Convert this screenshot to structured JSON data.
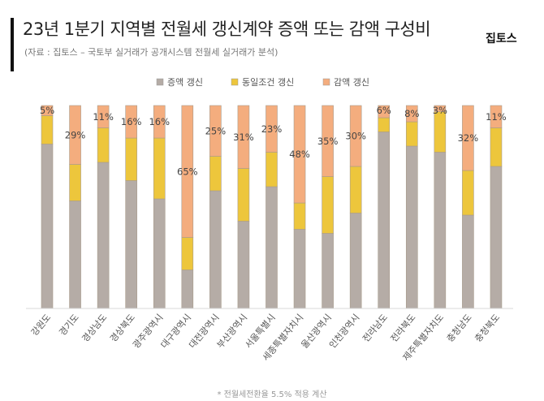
{
  "header": {
    "title": "23년 1분기 지역별 전월세 갱신계약 증액 또는 감액 구성비",
    "subtitle": "(자료 : 집토스 – 국토부 실거래가 공개시스템 전월세 실거래가 분석)",
    "brand": "집토스"
  },
  "footnote": "* 전월세전환율 5.5% 적용 계산",
  "chart_data": {
    "type": "bar",
    "stacked": true,
    "percent_stacked": true,
    "ylim": [
      0,
      100
    ],
    "grid": false,
    "legend_position": "top",
    "categories": [
      "강원도",
      "경기도",
      "경상남도",
      "경상북도",
      "광주광역시",
      "대구광역시",
      "대전광역시",
      "부산광역시",
      "서울특별시",
      "세종특별자치시",
      "울산광역시",
      "인천광역시",
      "전라남도",
      "전라북도",
      "제주특별자치도",
      "충청남도",
      "충청북도"
    ],
    "series": [
      {
        "name": "증액 갱신",
        "color": "#b5aca6",
        "values": [
          81,
          53,
          72,
          63,
          54,
          19,
          58,
          43,
          60,
          39,
          37,
          47,
          87,
          80,
          77,
          46,
          70
        ]
      },
      {
        "name": "동일조건 갱신",
        "color": "#edc63c",
        "values": [
          14,
          18,
          17,
          21,
          30,
          16,
          17,
          26,
          17,
          13,
          28,
          23,
          7,
          12,
          20,
          22,
          19
        ]
      },
      {
        "name": "감액 갱신",
        "color": "#f4ad7e",
        "values": [
          5,
          29,
          11,
          16,
          16,
          65,
          25,
          31,
          23,
          48,
          35,
          30,
          6,
          8,
          3,
          32,
          11
        ]
      }
    ],
    "data_labels": [
      "5%",
      "29%",
      "11%",
      "16%",
      "16%",
      "65%",
      "25%",
      "31%",
      "23%",
      "48%",
      "35%",
      "30%",
      "6%",
      "8%",
      "3%",
      "32%",
      "11%"
    ]
  }
}
